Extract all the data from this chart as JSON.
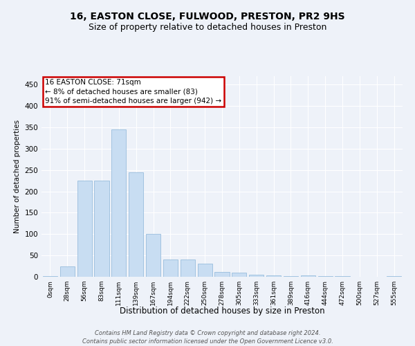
{
  "title": "16, EASTON CLOSE, FULWOOD, PRESTON, PR2 9HS",
  "subtitle": "Size of property relative to detached houses in Preston",
  "xlabel": "Distribution of detached houses by size in Preston",
  "ylabel": "Number of detached properties",
  "bar_color": "#c8ddf2",
  "bar_edge_color": "#8ab4d8",
  "background_color": "#eef2f9",
  "grid_color": "#ffffff",
  "annotation_text": "16 EASTON CLOSE: 71sqm\n← 8% of detached houses are smaller (83)\n91% of semi-detached houses are larger (942) →",
  "footer_line1": "Contains HM Land Registry data © Crown copyright and database right 2024.",
  "footer_line2": "Contains public sector information licensed under the Open Government Licence v3.0.",
  "tick_labels": [
    "0sqm",
    "28sqm",
    "56sqm",
    "83sqm",
    "111sqm",
    "139sqm",
    "167sqm",
    "194sqm",
    "222sqm",
    "250sqm",
    "278sqm",
    "305sqm",
    "333sqm",
    "361sqm",
    "389sqm",
    "416sqm",
    "444sqm",
    "472sqm",
    "500sqm",
    "527sqm",
    "555sqm"
  ],
  "bar_values": [
    2,
    25,
    225,
    225,
    345,
    245,
    100,
    40,
    40,
    30,
    12,
    10,
    5,
    4,
    1,
    3,
    1,
    1,
    0,
    0,
    2
  ],
  "ylim": [
    0,
    470
  ],
  "yticks": [
    0,
    50,
    100,
    150,
    200,
    250,
    300,
    350,
    400,
    450
  ],
  "bar_width": 0.85,
  "title_fontsize": 10,
  "subtitle_fontsize": 9,
  "xlabel_fontsize": 8.5,
  "ylabel_fontsize": 7.5,
  "tick_fontsize": 6.5,
  "ytick_fontsize": 7.5,
  "annotation_fontsize": 7.5,
  "footer_fontsize": 6.0
}
